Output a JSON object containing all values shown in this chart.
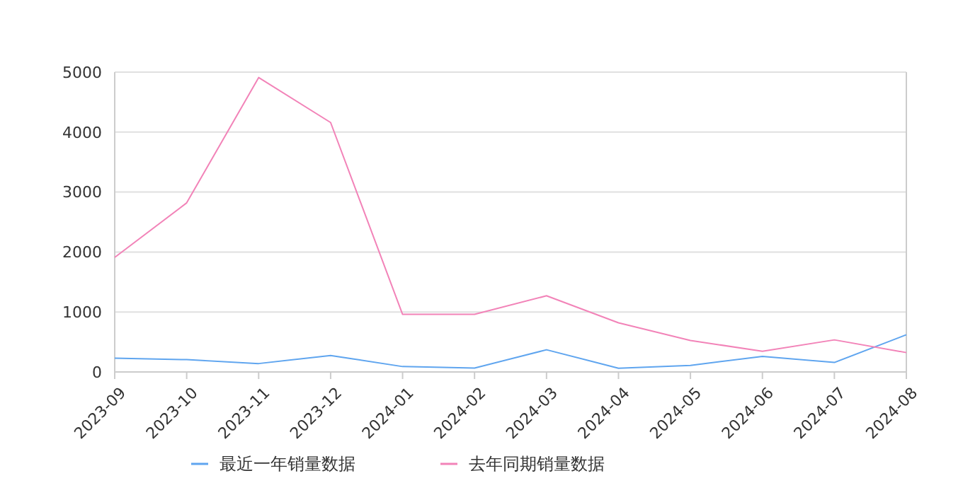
{
  "chart_data": {
    "type": "line",
    "categories": [
      "2023-09",
      "2023-10",
      "2023-11",
      "2023-12",
      "2024-01",
      "2024-02",
      "2024-03",
      "2024-04",
      "2024-05",
      "2024-06",
      "2024-07",
      "2024-08"
    ],
    "series": [
      {
        "name": "最近一年销量数据",
        "color": "#5fa5ef",
        "values": [
          230,
          205,
          140,
          275,
          90,
          65,
          370,
          63,
          110,
          260,
          158,
          620
        ]
      },
      {
        "name": "去年同期销量数据",
        "color": "#f283b8",
        "values": [
          1910,
          2820,
          4910,
          4160,
          960,
          960,
          1270,
          820,
          525,
          345,
          535,
          323
        ]
      }
    ],
    "ylim": [
      0,
      5000
    ],
    "yticks": [
      0,
      1000,
      2000,
      3000,
      4000,
      5000
    ],
    "grid": "y",
    "legend": "bottom",
    "marker": "none"
  }
}
